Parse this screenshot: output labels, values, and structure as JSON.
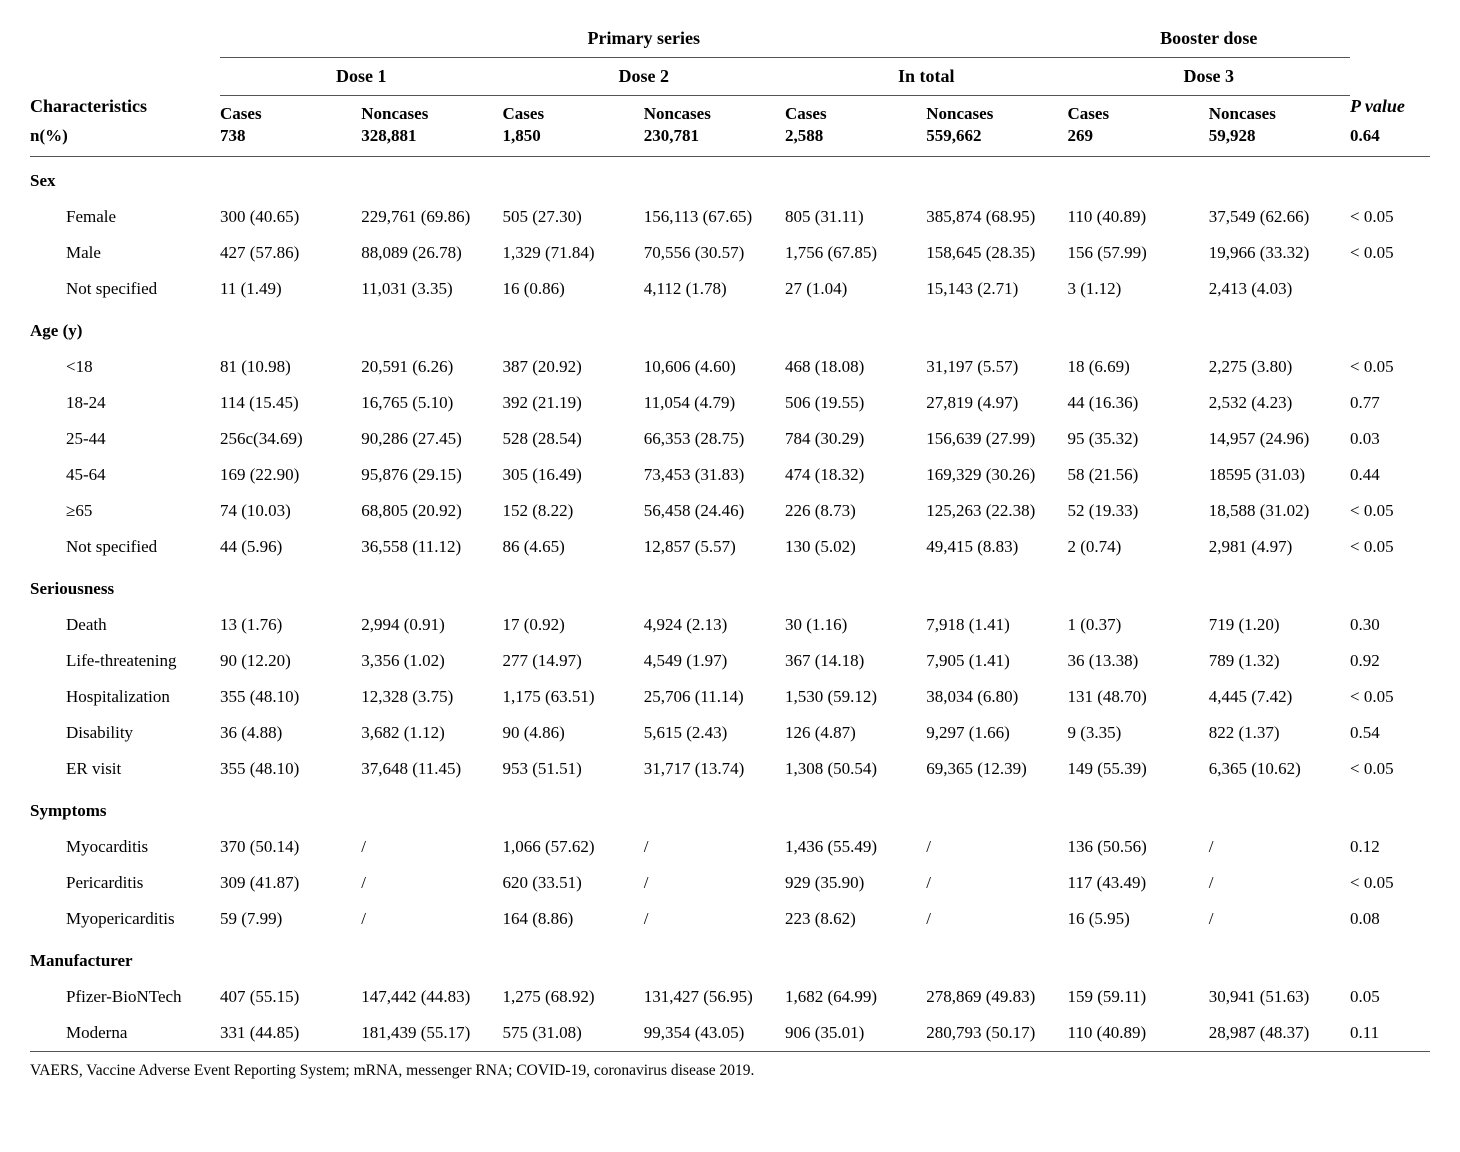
{
  "header": {
    "characteristics": "Characteristics",
    "primary": "Primary series",
    "booster": "Booster dose",
    "pvalue": "P value",
    "dose1": "Dose 1",
    "dose2": "Dose 2",
    "intotal": "In total",
    "dose3": "Dose 3",
    "cases": "Cases",
    "noncases": "Noncases",
    "nlabel": "n(%)",
    "n": {
      "d1c": "738",
      "d1n": "328,881",
      "d2c": "1,850",
      "d2n": "230,781",
      "tc": "2,588",
      "tn": "559,662",
      "d3c": "269",
      "d3n": "59,928",
      "p": "0.64"
    }
  },
  "sections": [
    {
      "title": "Sex",
      "rows": [
        {
          "label": "Female",
          "d1c": "300 (40.65)",
          "d1n": "229,761 (69.86)",
          "d2c": "505 (27.30)",
          "d2n": "156,113 (67.65)",
          "tc": "805 (31.11)",
          "tn": "385,874 (68.95)",
          "d3c": "110 (40.89)",
          "d3n": "37,549 (62.66)",
          "p": "< 0.05"
        },
        {
          "label": "Male",
          "d1c": "427 (57.86)",
          "d1n": "88,089 (26.78)",
          "d2c": "1,329 (71.84)",
          "d2n": "70,556 (30.57)",
          "tc": "1,756 (67.85)",
          "tn": "158,645 (28.35)",
          "d3c": "156 (57.99)",
          "d3n": "19,966 (33.32)",
          "p": "< 0.05"
        },
        {
          "label": "Not specified",
          "d1c": "11 (1.49)",
          "d1n": "11,031 (3.35)",
          "d2c": "16 (0.86)",
          "d2n": "4,112 (1.78)",
          "tc": "27 (1.04)",
          "tn": "15,143 (2.71)",
          "d3c": "3 (1.12)",
          "d3n": "2,413 (4.03)",
          "p": ""
        }
      ]
    },
    {
      "title": "Age (y)",
      "rows": [
        {
          "label": "<18",
          "d1c": "81 (10.98)",
          "d1n": "20,591 (6.26)",
          "d2c": "387 (20.92)",
          "d2n": "10,606 (4.60)",
          "tc": "468 (18.08)",
          "tn": "31,197 (5.57)",
          "d3c": "18 (6.69)",
          "d3n": "2,275 (3.80)",
          "p": "< 0.05"
        },
        {
          "label": "18-24",
          "d1c": "114 (15.45)",
          "d1n": "16,765 (5.10)",
          "d2c": "392 (21.19)",
          "d2n": "11,054 (4.79)",
          "tc": "506 (19.55)",
          "tn": "27,819 (4.97)",
          "d3c": "44 (16.36)",
          "d3n": "2,532 (4.23)",
          "p": "0.77"
        },
        {
          "label": "25-44",
          "d1c": "256c(34.69)",
          "d1n": "90,286 (27.45)",
          "d2c": "528 (28.54)",
          "d2n": "66,353 (28.75)",
          "tc": "784 (30.29)",
          "tn": "156,639 (27.99)",
          "d3c": "95 (35.32)",
          "d3n": "14,957 (24.96)",
          "p": "0.03"
        },
        {
          "label": "45-64",
          "d1c": "169 (22.90)",
          "d1n": "95,876 (29.15)",
          "d2c": "305 (16.49)",
          "d2n": "73,453 (31.83)",
          "tc": "474 (18.32)",
          "tn": "169,329 (30.26)",
          "d3c": "58 (21.56)",
          "d3n": "18595 (31.03)",
          "p": "0.44"
        },
        {
          "label": "≥65",
          "d1c": "74 (10.03)",
          "d1n": "68,805 (20.92)",
          "d2c": "152 (8.22)",
          "d2n": "56,458 (24.46)",
          "tc": "226 (8.73)",
          "tn": "125,263 (22.38)",
          "d3c": "52 (19.33)",
          "d3n": "18,588 (31.02)",
          "p": "< 0.05"
        },
        {
          "label": "Not specified",
          "d1c": "44 (5.96)",
          "d1n": "36,558 (11.12)",
          "d2c": "86 (4.65)",
          "d2n": "12,857 (5.57)",
          "tc": "130 (5.02)",
          "tn": "49,415 (8.83)",
          "d3c": "2 (0.74)",
          "d3n": "2,981 (4.97)",
          "p": "< 0.05"
        }
      ]
    },
    {
      "title": "Seriousness",
      "rows": [
        {
          "label": "Death",
          "d1c": "13 (1.76)",
          "d1n": "2,994 (0.91)",
          "d2c": "17 (0.92)",
          "d2n": "4,924 (2.13)",
          "tc": "30 (1.16)",
          "tn": "7,918 (1.41)",
          "d3c": "1 (0.37)",
          "d3n": "719 (1.20)",
          "p": "0.30"
        },
        {
          "label": "Life-threatening",
          "d1c": "90 (12.20)",
          "d1n": "3,356 (1.02)",
          "d2c": "277 (14.97)",
          "d2n": "4,549 (1.97)",
          "tc": "367 (14.18)",
          "tn": "7,905 (1.41)",
          "d3c": "36 (13.38)",
          "d3n": "789 (1.32)",
          "p": "0.92"
        },
        {
          "label": "Hospitalization",
          "d1c": "355 (48.10)",
          "d1n": "12,328 (3.75)",
          "d2c": "1,175 (63.51)",
          "d2n": "25,706 (11.14)",
          "tc": "1,530 (59.12)",
          "tn": "38,034 (6.80)",
          "d3c": "131 (48.70)",
          "d3n": "4,445 (7.42)",
          "p": "< 0.05"
        },
        {
          "label": "Disability",
          "d1c": "36 (4.88)",
          "d1n": "3,682 (1.12)",
          "d2c": "90 (4.86)",
          "d2n": "5,615 (2.43)",
          "tc": "126 (4.87)",
          "tn": "9,297 (1.66)",
          "d3c": "9 (3.35)",
          "d3n": "822 (1.37)",
          "p": "0.54"
        },
        {
          "label": "ER visit",
          "d1c": "355 (48.10)",
          "d1n": "37,648 (11.45)",
          "d2c": "953 (51.51)",
          "d2n": "31,717 (13.74)",
          "tc": "1,308 (50.54)",
          "tn": "69,365 (12.39)",
          "d3c": "149 (55.39)",
          "d3n": "6,365 (10.62)",
          "p": "< 0.05"
        }
      ]
    },
    {
      "title": "Symptoms",
      "rows": [
        {
          "label": "Myocarditis",
          "d1c": "370 (50.14)",
          "d1n": "/",
          "d2c": "1,066 (57.62)",
          "d2n": "/",
          "tc": "1,436 (55.49)",
          "tn": "/",
          "d3c": "136 (50.56)",
          "d3n": "/",
          "p": "0.12"
        },
        {
          "label": "Pericarditis",
          "d1c": "309 (41.87)",
          "d1n": "/",
          "d2c": "620 (33.51)",
          "d2n": "/",
          "tc": "929 (35.90)",
          "tn": "/",
          "d3c": "117 (43.49)",
          "d3n": "/",
          "p": "< 0.05"
        },
        {
          "label": "Myopericarditis",
          "d1c": "59 (7.99)",
          "d1n": "/",
          "d2c": "164 (8.86)",
          "d2n": "/",
          "tc": "223 (8.62)",
          "tn": "/",
          "d3c": "16 (5.95)",
          "d3n": "/",
          "p": "0.08"
        }
      ]
    },
    {
      "title": "Manufacturer",
      "rows": [
        {
          "label": "Pfizer-BioNTech",
          "d1c": "407 (55.15)",
          "d1n": "147,442 (44.83)",
          "d2c": "1,275 (68.92)",
          "d2n": "131,427 (56.95)",
          "tc": "1,682 (64.99)",
          "tn": "278,869 (49.83)",
          "d3c": "159 (59.11)",
          "d3n": "30,941 (51.63)",
          "p": "0.05"
        },
        {
          "label": "Moderna",
          "d1c": "331 (44.85)",
          "d1n": "181,439 (55.17)",
          "d2c": "575 (31.08)",
          "d2n": "99,354 (43.05)",
          "tc": "906 (35.01)",
          "tn": "280,793 (50.17)",
          "d3c": "110 (40.89)",
          "d3n": "28,987 (48.37)",
          "p": "0.11"
        }
      ]
    }
  ],
  "footnote": "VAERS, Vaccine Adverse Event Reporting System; mRNA, messenger RNA; COVID-19, coronavirus disease 2019."
}
